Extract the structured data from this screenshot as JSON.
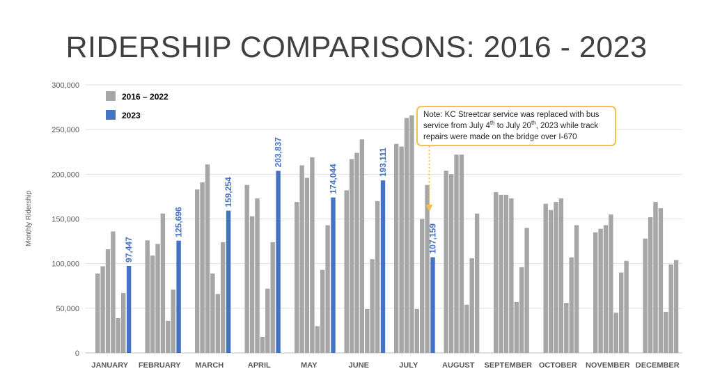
{
  "title": "RIDERSHIP COMPARISONS: 2016 - 2023",
  "note": {
    "p1": "Note: KC Streetcar service was replaced with bus service from July 4",
    "sup1": "th",
    "p2": " to July 20",
    "sup2": "th",
    "p3": ", 2023 while track repairs were made on the bridge over I-670"
  },
  "colors": {
    "past": "#a6a6a6",
    "current": "#4472c4",
    "note_border": "#f2c14e",
    "arrow": "#f2c14e"
  },
  "chart_data": {
    "type": "bar",
    "ylabel": "Monthly Ridership",
    "ylim": [
      0,
      300000
    ],
    "yticks": [
      0,
      50000,
      100000,
      150000,
      200000,
      250000,
      300000
    ],
    "ytick_labels": [
      "0",
      "50,000",
      "100,000",
      "150,000",
      "200,000",
      "250,000",
      "300,000"
    ],
    "legend_position": "top-left",
    "grid": true,
    "categories": [
      "JANUARY",
      "FEBRUARY",
      "MARCH",
      "APRIL",
      "MAY",
      "JUNE",
      "JULY",
      "AUGUST",
      "SEPTEMBER",
      "OCTOBER",
      "NOVEMBER",
      "DECEMBER"
    ],
    "series": [
      {
        "name": "2016 – 2022",
        "values_by_month": [
          [
            89000,
            97000,
            116000,
            136000,
            39000,
            67000
          ],
          [
            126000,
            109000,
            122000,
            156000,
            36000,
            71000
          ],
          [
            183000,
            191000,
            211000,
            89000,
            66000,
            124000
          ],
          [
            188000,
            153000,
            173000,
            18000,
            72000,
            124000
          ],
          [
            169000,
            210000,
            196000,
            219000,
            30000,
            93000,
            143000
          ],
          [
            182000,
            217000,
            224000,
            239000,
            49000,
            105000,
            170000
          ],
          [
            234000,
            231000,
            263000,
            266000,
            49000,
            150000,
            188000
          ],
          [
            204000,
            200000,
            222000,
            222000,
            54000,
            106000,
            156000
          ],
          [
            180000,
            177000,
            177000,
            173000,
            57000,
            96000,
            140000
          ],
          [
            167000,
            160000,
            169000,
            173000,
            56000,
            107000,
            143000
          ],
          [
            135000,
            139000,
            143000,
            155000,
            45000,
            90000,
            103000
          ],
          [
            128000,
            152000,
            169000,
            162000,
            46000,
            99000,
            104000
          ]
        ]
      },
      {
        "name": "2023",
        "values": [
          97447,
          125696,
          159254,
          203837,
          174044,
          193111,
          107159,
          null,
          null,
          null,
          null,
          null
        ],
        "labels": [
          "97,447",
          "125,696",
          "159,254",
          "203,837",
          "174,044",
          "193,111",
          "107,159",
          "",
          "",
          "",
          "",
          ""
        ]
      }
    ]
  }
}
